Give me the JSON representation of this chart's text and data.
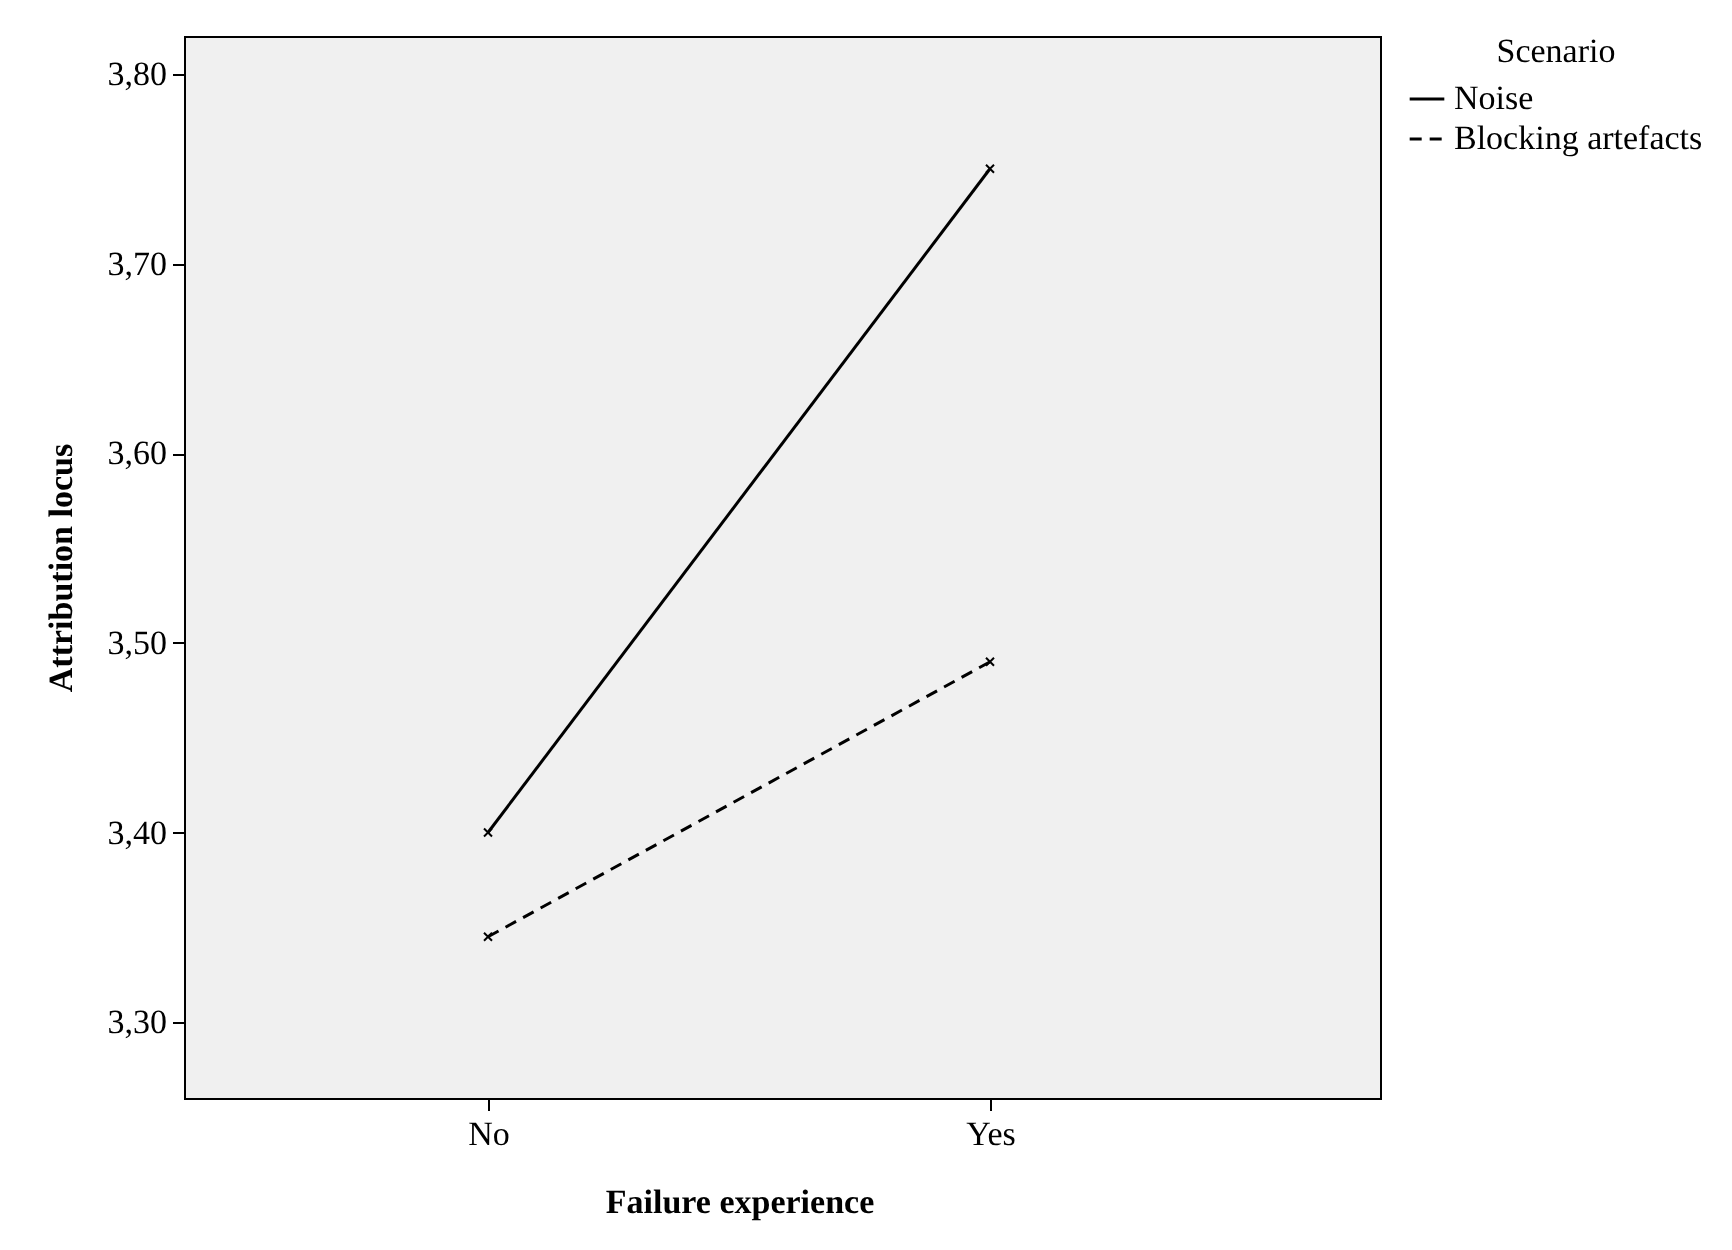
{
  "chart_data": {
    "type": "line",
    "xlabel": "Failure experience",
    "ylabel": "Attribution locus",
    "legend_title": "Scenario",
    "categories": [
      "No",
      "Yes"
    ],
    "series": [
      {
        "name": "Noise",
        "color": "#000000",
        "line_style": "solid",
        "values": [
          3.4,
          3.75
        ]
      },
      {
        "name": "Blocking artefacts",
        "color": "#000000",
        "line_style": "dashed",
        "values": [
          3.345,
          3.49
        ]
      }
    ],
    "ylim": [
      3.26,
      3.82
    ],
    "yticks": [
      {
        "value": 3.3,
        "label": "3,30"
      },
      {
        "value": 3.4,
        "label": "3,40"
      },
      {
        "value": 3.5,
        "label": "3,50"
      },
      {
        "value": 3.6,
        "label": "3,60"
      },
      {
        "value": 3.7,
        "label": "3,70"
      },
      {
        "value": 3.8,
        "label": "3,80"
      }
    ],
    "grid": false,
    "legend": "top right",
    "marker": "cross"
  }
}
